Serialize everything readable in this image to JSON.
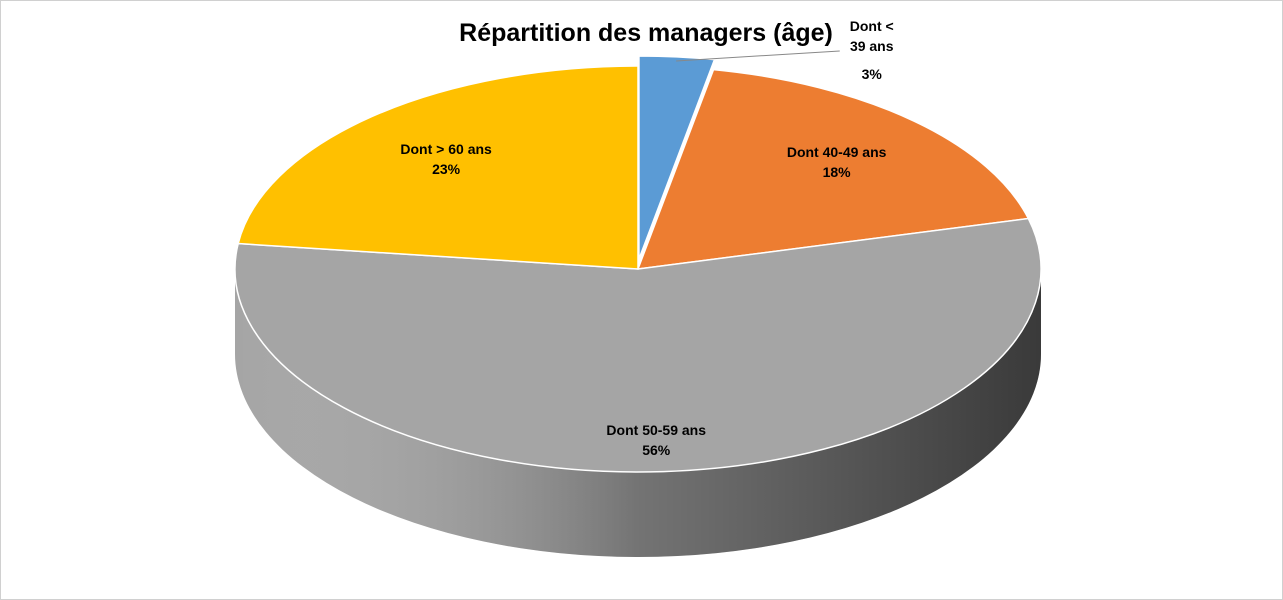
{
  "chart_data": {
    "type": "pie",
    "title": "Répartition des managers (âge)",
    "categories": [
      "Dont < 39 ans",
      "Dont 40-49 ans",
      "Dont 50-59 ans",
      "Dont > 60 ans"
    ],
    "values": [
      3,
      18,
      56,
      23
    ],
    "value_labels": [
      "3%",
      "18%",
      "56%",
      "23%"
    ],
    "colors": [
      "#5b9bd5",
      "#ed7d31",
      "#a5a5a5",
      "#ffc000"
    ]
  }
}
